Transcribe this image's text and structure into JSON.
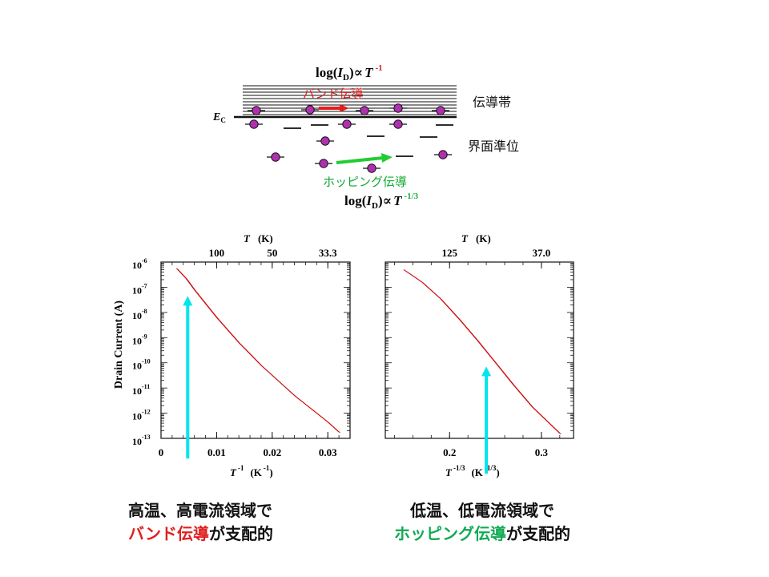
{
  "diagram": {
    "top_formula": {
      "prefix": "log(",
      "var": "I",
      "sub": "D",
      "mid": ")∝",
      "T": "T",
      "exp": "-1"
    },
    "bottom_formula": {
      "prefix": "log(",
      "var": "I",
      "sub": "D",
      "mid": ")∝",
      "T": "T",
      "exp": "-1/3"
    },
    "ec_label": {
      "main": "E",
      "sub": "C"
    },
    "band_label": "バンド伝導",
    "conduction_band_label": "伝導帯",
    "interface_states_label": "界面準位",
    "hopping_label": "ホッピング伝導",
    "colors": {
      "band": "#e02020",
      "hopping": "#22cc33",
      "electron": "#b030b0",
      "formula_red": "#e02020",
      "formula_green": "#22aa44"
    }
  },
  "chart_data": [
    {
      "type": "line",
      "xlabel": {
        "main": "T",
        "exp": "-1",
        "unit": "(K",
        "unit_exp": "-1",
        "close": ")"
      },
      "ylabel": "Drain Current  (A)",
      "top_axis_label": {
        "main": "T",
        "unit": "(K)"
      },
      "top_ticks": [
        {
          "label": "100",
          "x": 0.01
        },
        {
          "label": "50",
          "x": 0.02
        },
        {
          "label": "33.3",
          "x": 0.03
        }
      ],
      "xlim": [
        0,
        0.034
      ],
      "x_ticks": [
        {
          "label": "0",
          "x": 0
        },
        {
          "label": "0.01",
          "x": 0.01
        },
        {
          "label": "0.02",
          "x": 0.02
        },
        {
          "label": "0.03",
          "x": 0.03
        }
      ],
      "y_scale": "log",
      "ylim": [
        -13,
        -6
      ],
      "y_ticks": [
        {
          "base": "10",
          "exp": "-6",
          "v": -6
        },
        {
          "base": "10",
          "exp": "-7",
          "v": -7
        },
        {
          "base": "10",
          "exp": "-8",
          "v": -8
        },
        {
          "base": "10",
          "exp": "-9",
          "v": -9
        },
        {
          "base": "10",
          "exp": "-10",
          "v": -10
        },
        {
          "base": "10",
          "exp": "-11",
          "v": -11
        },
        {
          "base": "10",
          "exp": "-12",
          "v": -12
        },
        {
          "base": "10",
          "exp": "-13",
          "v": -13
        }
      ],
      "series": [
        {
          "x": [
            0.0028,
            0.0045,
            0.006,
            0.008,
            0.01,
            0.012,
            0.014,
            0.016,
            0.018,
            0.02,
            0.022,
            0.024,
            0.026,
            0.028,
            0.03,
            0.032
          ],
          "log10_y": [
            -6.25,
            -6.65,
            -7.1,
            -7.65,
            -8.2,
            -8.7,
            -9.2,
            -9.65,
            -10.1,
            -10.5,
            -10.9,
            -11.3,
            -11.65,
            -12.0,
            -12.35,
            -12.75
          ],
          "color": "#cc1111"
        }
      ],
      "annotation": {
        "x": 0.0048,
        "from_log10_y": -13.8,
        "to_log10_y": -7.35,
        "color": "#00e5ee"
      },
      "caption": {
        "line1": "高温、高電流領域で",
        "line2_colored": "バンド伝導",
        "line2_rest": "が支配的",
        "colored_color": "#e02020"
      }
    },
    {
      "type": "line",
      "xlabel": {
        "main": "T",
        "exp": "-1/3",
        "unit": "(K",
        "unit_exp": "-1/3",
        "close": ")"
      },
      "top_axis_label": {
        "main": "T",
        "unit": "(K)"
      },
      "top_ticks": [
        {
          "label": "125",
          "x": 0.2
        },
        {
          "label": "37.0",
          "x": 0.3
        }
      ],
      "xlim": [
        0.13,
        0.335
      ],
      "x_ticks": [
        {
          "label": "0.2",
          "x": 0.2
        },
        {
          "label": "0.3",
          "x": 0.3
        }
      ],
      "y_scale": "log",
      "ylim": [
        -13,
        -6
      ],
      "series": [
        {
          "x": [
            0.15,
            0.17,
            0.19,
            0.21,
            0.23,
            0.25,
            0.27,
            0.29,
            0.31,
            0.32
          ],
          "log10_y": [
            -6.3,
            -6.8,
            -7.45,
            -8.25,
            -9.1,
            -10.0,
            -10.9,
            -11.75,
            -12.45,
            -12.8
          ],
          "color": "#cc1111"
        }
      ],
      "annotation": {
        "x": 0.24,
        "from_log10_y": -14.4,
        "to_log10_y": -10.15,
        "color": "#00e5ee"
      },
      "caption": {
        "line1": "低温、低電流領域で",
        "line2_colored": "ホッピング伝導",
        "line2_rest": "が支配的",
        "colored_color": "#11aa55"
      }
    }
  ]
}
